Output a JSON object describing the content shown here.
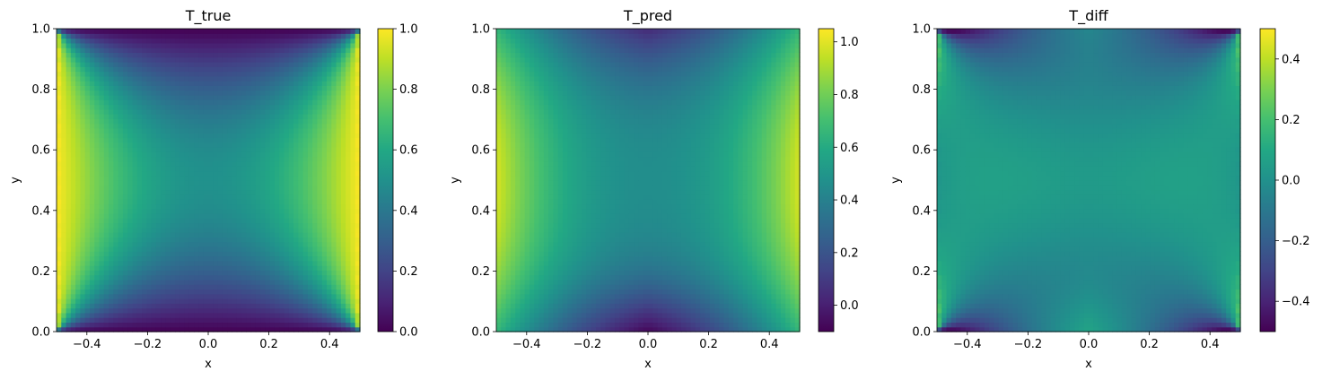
{
  "chart_data": [
    {
      "type": "heatmap",
      "title": "T_true",
      "xlabel": "x",
      "ylabel": "y",
      "xlim": [
        -0.5,
        0.5
      ],
      "ylim": [
        0.0,
        1.0
      ],
      "xticks": [
        -0.4,
        -0.2,
        0.0,
        0.2,
        0.4
      ],
      "xtick_labels": [
        "−0.4",
        "−0.2",
        "0.0",
        "0.2",
        "0.4"
      ],
      "yticks": [
        0.0,
        0.2,
        0.4,
        0.6,
        0.8,
        1.0
      ],
      "ytick_labels": [
        "0.0",
        "0.2",
        "0.4",
        "0.6",
        "0.8",
        "1.0"
      ],
      "colormap": "viridis",
      "clim": [
        0.0,
        1.0
      ],
      "colorbar_ticks": [
        0.0,
        0.2,
        0.4,
        0.6,
        0.8,
        1.0
      ],
      "colorbar_tick_labels": [
        "0.0",
        "0.2",
        "0.4",
        "0.6",
        "0.8",
        "1.0"
      ],
      "field": "T = 1 at the left and right edges (x = ±0.5), T = 0 at the bottom and top edges (y = 0, 1); about 0.5 at the centre"
    },
    {
      "type": "heatmap",
      "title": "T_pred",
      "xlabel": "x",
      "ylabel": "y",
      "xlim": [
        -0.5,
        0.5
      ],
      "ylim": [
        0.0,
        1.0
      ],
      "xticks": [
        -0.4,
        -0.2,
        0.0,
        0.2,
        0.4
      ],
      "xtick_labels": [
        "−0.4",
        "−0.2",
        "0.0",
        "0.2",
        "0.4"
      ],
      "yticks": [
        0.0,
        0.2,
        0.4,
        0.6,
        0.8,
        1.0
      ],
      "ytick_labels": [
        "0.0",
        "0.2",
        "0.4",
        "0.6",
        "0.8",
        "1.0"
      ],
      "colormap": "viridis",
      "clim": [
        -0.1,
        1.05
      ],
      "colorbar_ticks": [
        0.0,
        0.2,
        0.4,
        0.6,
        0.8,
        1.0
      ],
      "colorbar_tick_labels": [
        "0.0",
        "0.2",
        "0.4",
        "0.6",
        "0.8",
        "1.0"
      ],
      "field": "smooth prediction: about 1.0 at mid-height of the left and right edges, about -0.1 near the middle of the bottom edge, about 0.55 at the corners"
    },
    {
      "type": "heatmap",
      "title": "T_diff",
      "xlabel": "x",
      "ylabel": "y",
      "xlim": [
        -0.5,
        0.5
      ],
      "ylim": [
        0.0,
        1.0
      ],
      "xticks": [
        -0.4,
        -0.2,
        0.0,
        0.2,
        0.4
      ],
      "xtick_labels": [
        "−0.4",
        "−0.2",
        "0.0",
        "0.2",
        "0.4"
      ],
      "yticks": [
        0.0,
        0.2,
        0.4,
        0.6,
        0.8,
        1.0
      ],
      "ytick_labels": [
        "0.0",
        "0.2",
        "0.4",
        "0.6",
        "0.8",
        "1.0"
      ],
      "colormap": "viridis",
      "clim": [
        -0.5,
        0.5
      ],
      "colorbar_ticks": [
        -0.4,
        -0.2,
        0.0,
        0.2,
        0.4
      ],
      "colorbar_tick_labels": [
        "−0.4",
        "−0.2",
        "0.0",
        "0.2",
        "0.4"
      ],
      "field": "difference T_true − T_pred: close to 0 over the interior; +0.4 to +0.5 along the left and right edges near the corners, −0.4 to −0.5 along the top and bottom edges near the corners"
    }
  ]
}
